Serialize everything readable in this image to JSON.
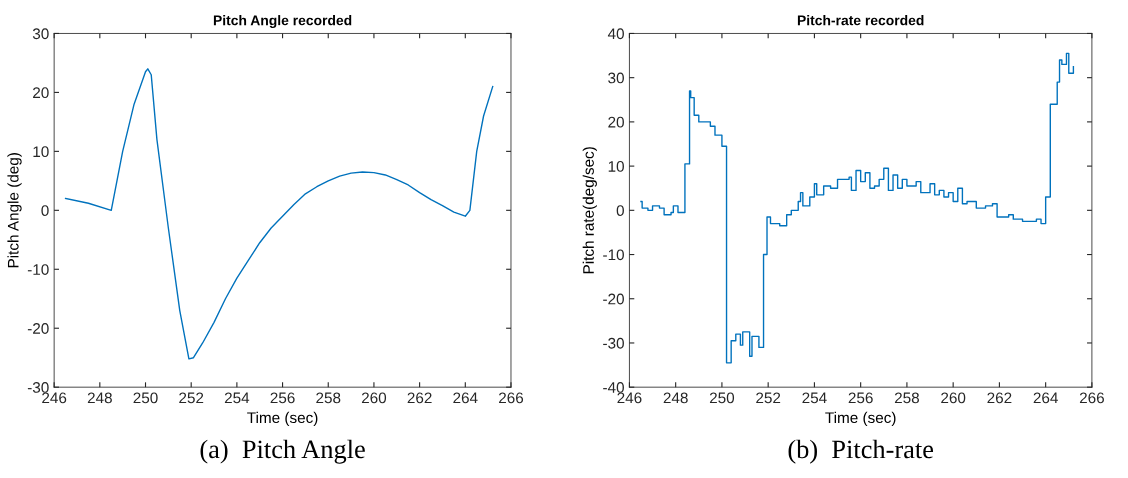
{
  "chart_data": [
    {
      "type": "line",
      "title": "Pitch Angle recorded",
      "xlabel": "Time (sec)",
      "ylabel": "Pitch Angle (deg)",
      "annotations": [
        "(a)  Pitch Angle"
      ],
      "xlim": [
        246,
        266
      ],
      "ylim": [
        -30,
        30
      ],
      "xticks": [
        246,
        248,
        250,
        252,
        254,
        256,
        258,
        260,
        262,
        264,
        266
      ],
      "yticks": [
        -30,
        -20,
        -10,
        0,
        10,
        20,
        30
      ],
      "grid": false,
      "legend": false,
      "series": [
        {
          "color": "#0072bd",
          "x": [
            246.5,
            247.5,
            248.5,
            249,
            249.5,
            250,
            250.1,
            250.25,
            250.5,
            251,
            251.5,
            251.9,
            252.1,
            252.5,
            253,
            253.5,
            254,
            254.5,
            255,
            255.5,
            256,
            256.5,
            257,
            257.5,
            258,
            258.5,
            259,
            259.5,
            260,
            260.5,
            261,
            261.5,
            262,
            262.5,
            263,
            263.5,
            264,
            264.2,
            264.5,
            264.8,
            265.2
          ],
          "values": [
            2,
            1.2,
            0,
            10,
            18,
            23.5,
            24,
            23,
            12,
            -3,
            -17,
            -25.2,
            -25,
            -22.5,
            -19,
            -15,
            -11.5,
            -8.5,
            -5.5,
            -3,
            -1,
            1,
            2.8,
            4,
            5,
            5.8,
            6.3,
            6.5,
            6.4,
            6,
            5.2,
            4.3,
            3,
            1.8,
            0.8,
            -0.3,
            -1,
            0,
            10,
            16,
            21
          ]
        }
      ]
    },
    {
      "type": "step",
      "title": "Pitch-rate recorded",
      "xlabel": "Time (sec)",
      "ylabel": "Pitch rate(deg/sec)",
      "annotations": [
        "(b)  Pitch-rate"
      ],
      "xlim": [
        246,
        266
      ],
      "ylim": [
        -40,
        40
      ],
      "xticks": [
        246,
        248,
        250,
        252,
        254,
        256,
        258,
        260,
        262,
        264,
        266
      ],
      "yticks": [
        -40,
        -30,
        -20,
        -10,
        0,
        10,
        20,
        30,
        40
      ],
      "grid": false,
      "legend": false,
      "series": [
        {
          "color": "#0072bd",
          "x": [
            246.5,
            246.55,
            246.8,
            247,
            247.3,
            247.5,
            247.8,
            247.9,
            248.1,
            248.4,
            248.6,
            248.65,
            248.8,
            249,
            249.5,
            249.7,
            250,
            250.2,
            250.4,
            250.6,
            250.8,
            250.9,
            251.2,
            251.3,
            251.5,
            251.6,
            251.8,
            251.95,
            252.1,
            252.5,
            252.8,
            253,
            253.3,
            253.4,
            253.5,
            253.8,
            254,
            254.1,
            254.4,
            254.7,
            255,
            255.5,
            255.6,
            255.8,
            256,
            256.2,
            256.4,
            256.6,
            256.8,
            257,
            257.2,
            257.4,
            257.6,
            257.8,
            258,
            258.4,
            258.6,
            259,
            259.2,
            259.4,
            259.6,
            259.8,
            260,
            260.2,
            260.4,
            260.6,
            261,
            261.4,
            261.7,
            261.9,
            262.4,
            262.6,
            263,
            263.4,
            263.6,
            263.8,
            264,
            264.2,
            264.5,
            264.6,
            264.7,
            264.9,
            265,
            265.2
          ],
          "values": [
            2,
            0.5,
            0,
            1,
            0.5,
            -1,
            -0.5,
            1,
            -0.5,
            10.5,
            27,
            25.5,
            21.5,
            20,
            19,
            17,
            14.5,
            -34.5,
            -29.5,
            -28,
            -30.5,
            -27.5,
            -33,
            -28.5,
            -28.5,
            -31,
            -10,
            -1.5,
            -3,
            -3.5,
            -1,
            0,
            2,
            4,
            1,
            3,
            6,
            3.5,
            5.5,
            5,
            7,
            7.5,
            4.5,
            9,
            6.5,
            8.5,
            5,
            5.5,
            7,
            9.5,
            4.5,
            8,
            5,
            7,
            5.5,
            6.5,
            4,
            6,
            3.5,
            4.5,
            3,
            4,
            2,
            5,
            1.5,
            2,
            0.5,
            1,
            1.5,
            -1.5,
            -1,
            -2,
            -2.5,
            -2.5,
            -2,
            -3,
            3,
            24,
            29,
            34,
            33,
            35.5,
            31,
            32.5
          ]
        }
      ]
    }
  ]
}
